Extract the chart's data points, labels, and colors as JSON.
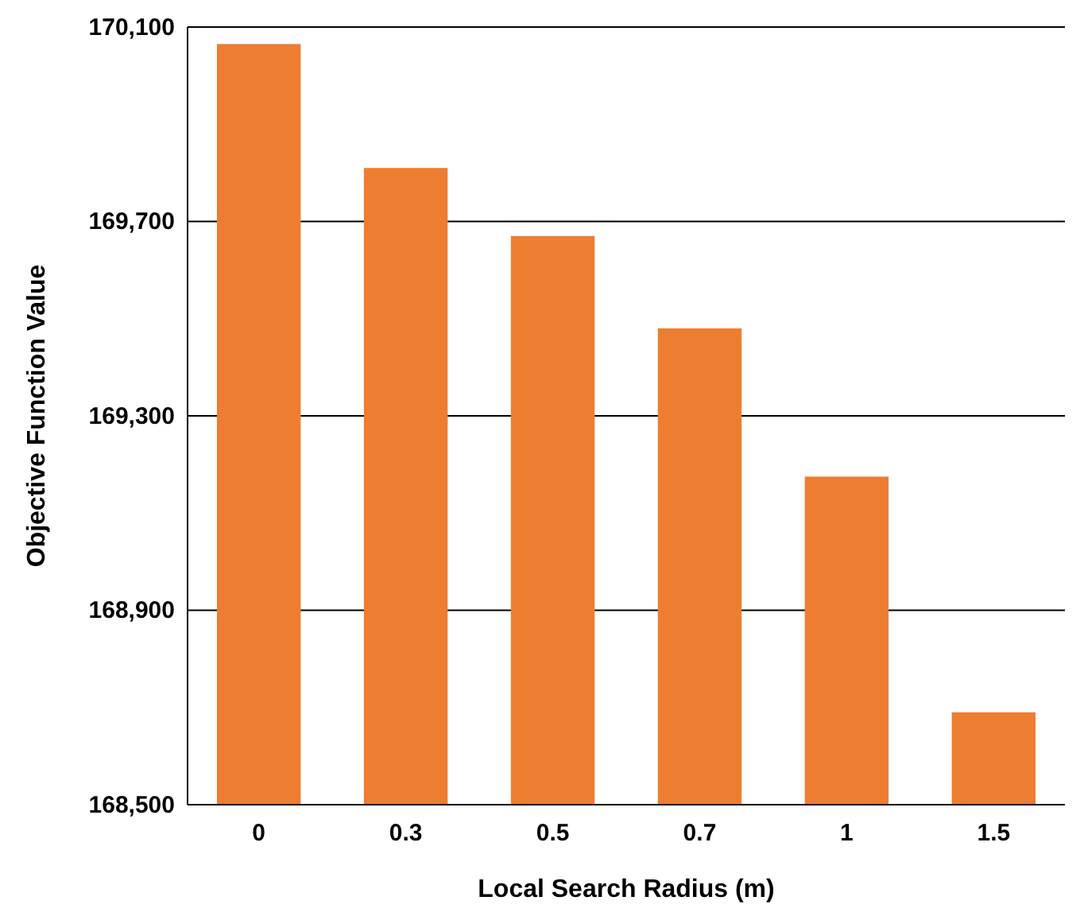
{
  "chart_data": {
    "type": "bar",
    "xlabel": "Local Search Radius (m)",
    "ylabel": "Objective Function Value",
    "categories": [
      "0",
      "0.3",
      "0.5",
      "0.7",
      "1",
      "1.5"
    ],
    "values": [
      170065,
      169810,
      169670,
      169480,
      169175,
      168690
    ],
    "color": "#ed7d31",
    "ylim": [
      168500,
      170100
    ],
    "yticks": [
      {
        "value": 168500,
        "label": "168,500"
      },
      {
        "value": 168900,
        "label": "168,900"
      },
      {
        "value": 169300,
        "label": "169,300"
      },
      {
        "value": 169700,
        "label": "169,700"
      },
      {
        "value": 170100,
        "label": "170,100"
      }
    ],
    "grid": "y"
  }
}
